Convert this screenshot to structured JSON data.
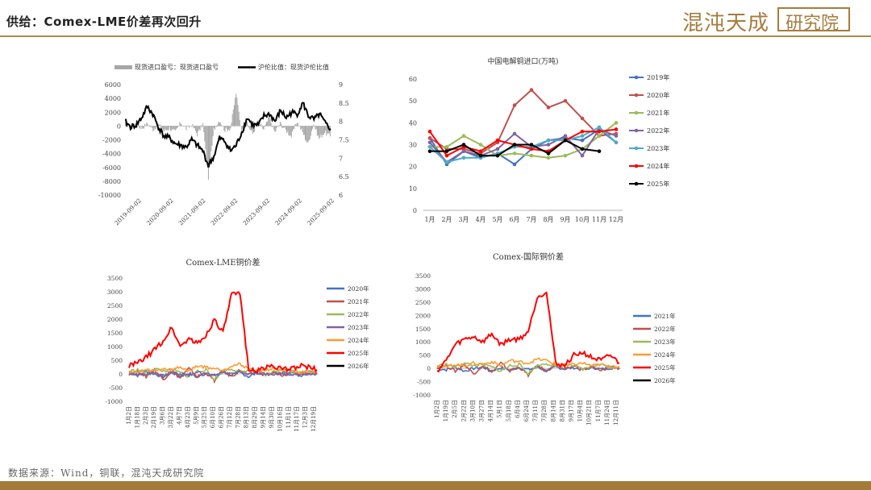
{
  "header": {
    "title": "供给：Comex-LME价差再次回升",
    "logo_text": "混沌天成",
    "logo_box_text": "研究院"
  },
  "footer": {
    "source": "数据来源：Wind，铜联，混沌天成研究院"
  },
  "chart_data": [
    {
      "type": "line",
      "title": "",
      "legend": [
        "现货进口盈亏：现货进口盈亏",
        "沪伦比值：现货沪伦比值"
      ],
      "x_labels": [
        "2019-09-02",
        "2020-09-02",
        "2021-09-02",
        "2022-09-02",
        "2023-09-02",
        "2024-09-02",
        "2025-09-02"
      ],
      "y_left_ticks": [
        "6000",
        "4000",
        "2000",
        "0",
        "-2000",
        "-4000",
        "-6000",
        "-8000",
        "-10000"
      ],
      "y_right_ticks": [
        "9",
        "8.5",
        "8",
        "7.5",
        "7",
        "6.5",
        "6"
      ],
      "ylim_left": [
        -10000,
        6000
      ],
      "ylim_right": [
        6,
        9
      ],
      "series": [
        {
          "name": "现货进口盈亏：现货进口盈亏",
          "color": "#a6a6a6",
          "axis": "left",
          "kind": "bar",
          "values": [
            300,
            -200,
            150,
            -300,
            400,
            -500,
            200,
            -700,
            -300,
            -900,
            500,
            -400,
            200,
            -1200,
            300,
            -7500,
            -500,
            900,
            -600,
            -300,
            4800,
            -800,
            300,
            -1100,
            600,
            -500,
            1200,
            -900,
            400,
            -600,
            -1500,
            700,
            -900,
            -2600,
            300,
            -1800,
            -900,
            -1500
          ]
        },
        {
          "name": "沪伦比值：现货沪伦比值",
          "color": "#000000",
          "axis": "right",
          "kind": "line",
          "values": [
            8.0,
            7.85,
            7.9,
            8.1,
            8.4,
            8.2,
            7.85,
            7.6,
            7.55,
            7.4,
            7.35,
            7.3,
            7.5,
            7.35,
            7.2,
            6.8,
            7.05,
            7.55,
            7.45,
            7.2,
            7.35,
            7.7,
            8.1,
            7.9,
            7.9,
            8.15,
            8.2,
            8.0,
            8.3,
            8.1,
            8.25,
            8.2,
            8.5,
            8.15,
            8.05,
            8.2,
            7.95,
            7.8
          ]
        }
      ]
    },
    {
      "type": "line",
      "title": "中国电解铜进口(万吨)",
      "categories": [
        "1月",
        "2月",
        "3月",
        "4月",
        "5月",
        "6月",
        "7月",
        "8月",
        "9月",
        "10月",
        "11月",
        "12月"
      ],
      "y_ticks": [
        "60",
        "50",
        "40",
        "30",
        "20",
        "10",
        "0"
      ],
      "ylim": [
        0,
        60
      ],
      "series": [
        {
          "name": "2019年",
          "color": "#4472c4",
          "values": [
            33,
            21,
            27,
            24,
            26,
            21,
            28,
            32,
            33,
            32,
            37,
            31
          ]
        },
        {
          "name": "2020年",
          "color": "#c0504d",
          "values": [
            33,
            28,
            28,
            26,
            31,
            48,
            55,
            47,
            50,
            42,
            34,
            35
          ]
        },
        {
          "name": "2021年",
          "color": "#9bbb59",
          "values": [
            29,
            29,
            34,
            30,
            25,
            26,
            25,
            24,
            25,
            28,
            34,
            40
          ]
        },
        {
          "name": "2022年",
          "color": "#8064a2",
          "values": [
            31,
            22,
            27,
            25,
            28,
            35,
            29,
            30,
            34,
            25,
            37,
            34
          ]
        },
        {
          "name": "2023年",
          "color": "#4bacc6",
          "values": [
            29,
            22,
            24,
            24,
            26,
            29,
            29,
            32,
            32,
            34,
            38,
            31
          ]
        },
        {
          "name": "2024年",
          "color": "#ff0000",
          "values": [
            36,
            25,
            29,
            27,
            32,
            30,
            28,
            27,
            32,
            36,
            36,
            37
          ]
        },
        {
          "name": "2025年",
          "color": "#000000",
          "values": [
            27,
            27,
            30,
            25,
            25,
            30,
            30,
            26,
            32,
            28,
            27,
            null
          ]
        }
      ]
    },
    {
      "type": "line",
      "title": "Comex-LME铜价差",
      "x_labels": [
        "1月2日",
        "1月18日",
        "2月3日",
        "2月19日",
        "3月6日",
        "3月22日",
        "4月7日",
        "4月23日",
        "5月9日",
        "5月25日",
        "6月10日",
        "6月26日",
        "7月12日",
        "7月28日",
        "8月13日",
        "8月29日",
        "9月14日",
        "9月30日",
        "10月16日",
        "11月1日",
        "11月17日",
        "12月3日",
        "12月19日"
      ],
      "y_ticks": [
        "3500",
        "3000",
        "2500",
        "2000",
        "1500",
        "1000",
        "500",
        "0",
        "-500",
        "-1000"
      ],
      "ylim": [
        -1000,
        3500
      ],
      "series": [
        {
          "name": "2020年",
          "color": "#4472c4",
          "values": [
            50,
            -50,
            100,
            0,
            -100,
            50,
            -80,
            30,
            -120,
            20,
            -60,
            80,
            -40,
            60,
            -100,
            40,
            -30,
            50,
            -20,
            10,
            -60,
            40,
            20
          ]
        },
        {
          "name": "2021年",
          "color": "#c0504d",
          "values": [
            0,
            100,
            -100,
            150,
            -200,
            100,
            -150,
            200,
            -100,
            50,
            -250,
            100,
            -100,
            150,
            -50,
            100,
            -50,
            50,
            -100,
            80,
            -20,
            60,
            40
          ]
        },
        {
          "name": "2022年",
          "color": "#9bbb59",
          "values": [
            100,
            150,
            50,
            200,
            100,
            150,
            50,
            -100,
            100,
            150,
            -200,
            100,
            200,
            50,
            150,
            100,
            -50,
            100,
            150,
            50,
            100,
            80,
            100
          ]
        },
        {
          "name": "2023年",
          "color": "#8064a2",
          "values": [
            50,
            -50,
            0,
            50,
            -80,
            100,
            0,
            -50,
            60,
            0,
            -30,
            40,
            0,
            80,
            -20,
            30,
            0,
            -40,
            50,
            0,
            20,
            -10,
            30
          ]
        },
        {
          "name": "2024年",
          "color": "#ff9933",
          "values": [
            100,
            50,
            150,
            100,
            200,
            150,
            250,
            100,
            300,
            250,
            200,
            150,
            300,
            350,
            200,
            100,
            150,
            200,
            100,
            150,
            50,
            100,
            80
          ]
        },
        {
          "name": "2025年",
          "color": "#ff0000",
          "values": [
            300,
            400,
            600,
            900,
            1200,
            1700,
            1000,
            1300,
            1100,
            1400,
            2000,
            1500,
            2900,
            2900,
            200,
            100,
            250,
            300,
            150,
            200,
            300,
            250,
            150
          ]
        },
        {
          "name": "2026年",
          "color": "#000000",
          "values": [
            0,
            null,
            null,
            null,
            null,
            null,
            null,
            null,
            null,
            null,
            null,
            null,
            null,
            null,
            null,
            null,
            null,
            null,
            null,
            null,
            null,
            null,
            null
          ]
        }
      ]
    },
    {
      "type": "line",
      "title": "Comex-国际铜价差",
      "x_labels": [
        "1月2日",
        "1月19日",
        "2月5日",
        "2月22日",
        "3月10日",
        "3月27日",
        "4月14日",
        "5月1日",
        "5月18日",
        "6月4日",
        "6月24日",
        "7月11日",
        "7月28日",
        "8月14日",
        "8月31日",
        "9月17日",
        "10月4日",
        "10月21日",
        "11月7日",
        "11月24日",
        "12月11日"
      ],
      "y_ticks": [
        "3500",
        "3000",
        "2500",
        "2000",
        "1500",
        "1000",
        "500",
        "0",
        "-500",
        "-1000"
      ],
      "ylim": [
        -1000,
        3500
      ],
      "series": [
        {
          "name": "2021年",
          "color": "#4472c4",
          "values": [
            0,
            -50,
            50,
            -100,
            0,
            50,
            -80,
            20,
            -60,
            40,
            -50,
            60,
            -100,
            50,
            -20,
            30,
            -60,
            40,
            -30,
            20,
            0
          ]
        },
        {
          "name": "2022年",
          "color": "#c0504d",
          "values": [
            50,
            100,
            -100,
            150,
            -200,
            100,
            -150,
            200,
            -100,
            50,
            -250,
            100,
            -100,
            150,
            -50,
            100,
            -50,
            50,
            -100,
            80,
            20
          ]
        },
        {
          "name": "2023年",
          "color": "#9bbb59",
          "values": [
            100,
            150,
            50,
            200,
            100,
            150,
            50,
            -100,
            100,
            150,
            -200,
            100,
            200,
            50,
            150,
            100,
            -50,
            100,
            150,
            50,
            80
          ]
        },
        {
          "name": "2024年",
          "color": "#ff9933",
          "values": [
            100,
            50,
            150,
            100,
            200,
            150,
            250,
            100,
            300,
            250,
            200,
            350,
            300,
            150,
            100,
            150,
            200,
            100,
            150,
            50,
            80
          ]
        },
        {
          "name": "2025年",
          "color": "#ff0000",
          "values": [
            -100,
            300,
            900,
            1100,
            1200,
            1000,
            1300,
            900,
            1100,
            1100,
            1400,
            2700,
            2900,
            200,
            100,
            500,
            600,
            400,
            300,
            500,
            200
          ]
        },
        {
          "name": "2026年",
          "color": "#000000",
          "values": [
            -200,
            null,
            null,
            null,
            null,
            null,
            null,
            null,
            null,
            null,
            null,
            null,
            null,
            null,
            null,
            null,
            null,
            null,
            null,
            null,
            null
          ]
        }
      ]
    }
  ]
}
